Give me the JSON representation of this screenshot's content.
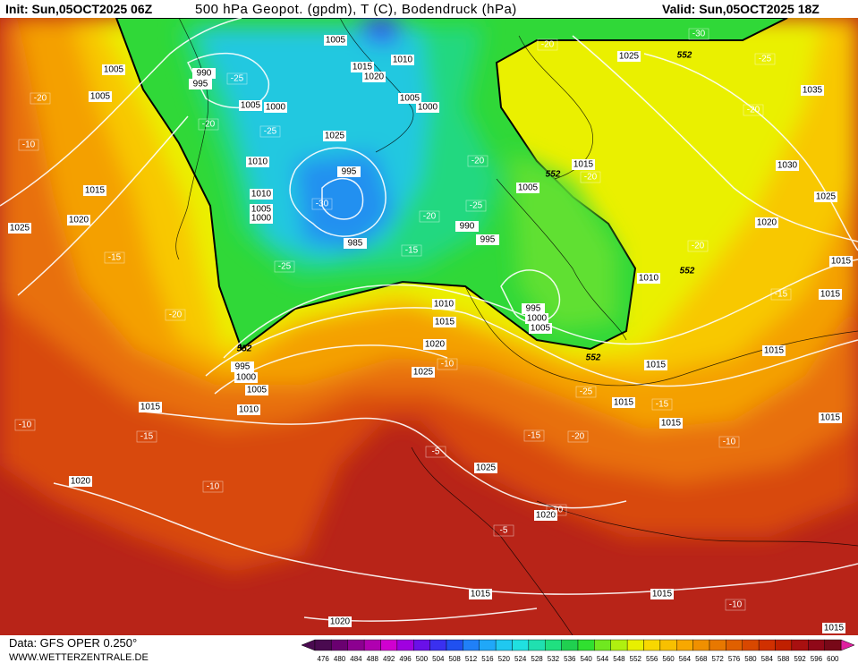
{
  "header": {
    "init": "Init: Sun,05OCT2025 06Z",
    "title": "500 hPa Geopot. (gpdm), T (C), Bodendruck (hPa)",
    "valid": "Valid: Sun,05OCT2025 18Z"
  },
  "footer": {
    "source": "Data: GFS OPER 0.250°",
    "url": "WWW.WETTERZENTRALE.DE"
  },
  "colorbar": {
    "values": [
      476,
      480,
      484,
      488,
      492,
      496,
      500,
      504,
      508,
      512,
      516,
      520,
      524,
      528,
      532,
      536,
      540,
      544,
      548,
      552,
      556,
      560,
      564,
      568,
      572,
      576,
      580,
      584,
      588,
      592,
      596,
      600
    ],
    "colors": [
      "#4a0a50",
      "#6a0070",
      "#8c0090",
      "#b000b0",
      "#d000d0",
      "#a000e0",
      "#6a10e8",
      "#3a30f0",
      "#2050f0",
      "#2080f8",
      "#20a8f8",
      "#20c8f0",
      "#20e0e0",
      "#20e0b0",
      "#20e080",
      "#20d050",
      "#30e030",
      "#70e820",
      "#b0f010",
      "#e8f000",
      "#f8d800",
      "#f8c000",
      "#f8a800",
      "#f09000",
      "#e87800",
      "#e06000",
      "#d84800",
      "#d03000",
      "#c02000",
      "#a81010",
      "#900818",
      "#780818"
    ]
  },
  "pressure_labels": [
    1005,
    1005,
    1005,
    990,
    995,
    1005,
    1000,
    1015,
    1020,
    1010,
    1005,
    1000,
    1025,
    1010,
    995,
    1015,
    1020,
    1025,
    1010,
    1005,
    1000,
    985,
    990,
    995,
    1005,
    1015,
    1025,
    1035,
    1030,
    1025,
    1020,
    1015,
    1010,
    1015,
    995,
    1000,
    1005,
    1010,
    1015,
    1020,
    1025,
    995,
    1000,
    1005,
    1010,
    1015,
    1015,
    1015,
    1015,
    1015,
    1015,
    1025,
    1020,
    1020,
    1015,
    1015,
    1020,
    1015
  ],
  "temperature_labels": [
    -25,
    -20,
    -25,
    -20,
    -25,
    -20,
    -30,
    -15,
    -25,
    -20,
    -10,
    -15,
    -20,
    -10,
    -15,
    -10,
    -10,
    -5,
    -15,
    -20,
    -25,
    -15,
    -10,
    -15,
    -20,
    -20,
    -25,
    -30,
    -20,
    -5,
    -10,
    -10,
    -20
  ],
  "geopotential_labels": [
    552,
    552,
    552,
    552,
    552
  ]
}
